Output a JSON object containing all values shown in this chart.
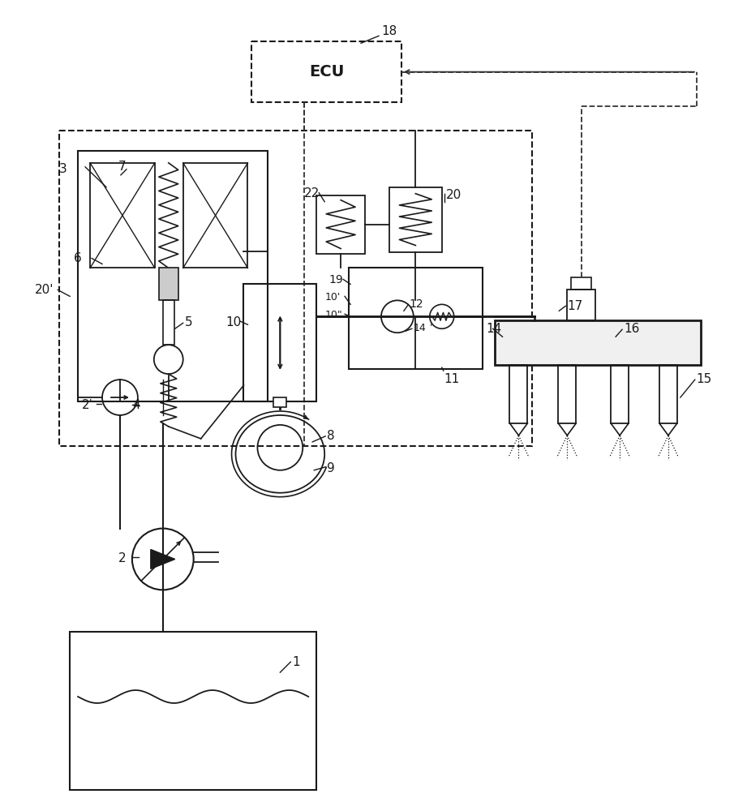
{
  "bg_color": "#ffffff",
  "line_color": "#1a1a1a",
  "dashed_color": "#333333",
  "gray": "#888888"
}
